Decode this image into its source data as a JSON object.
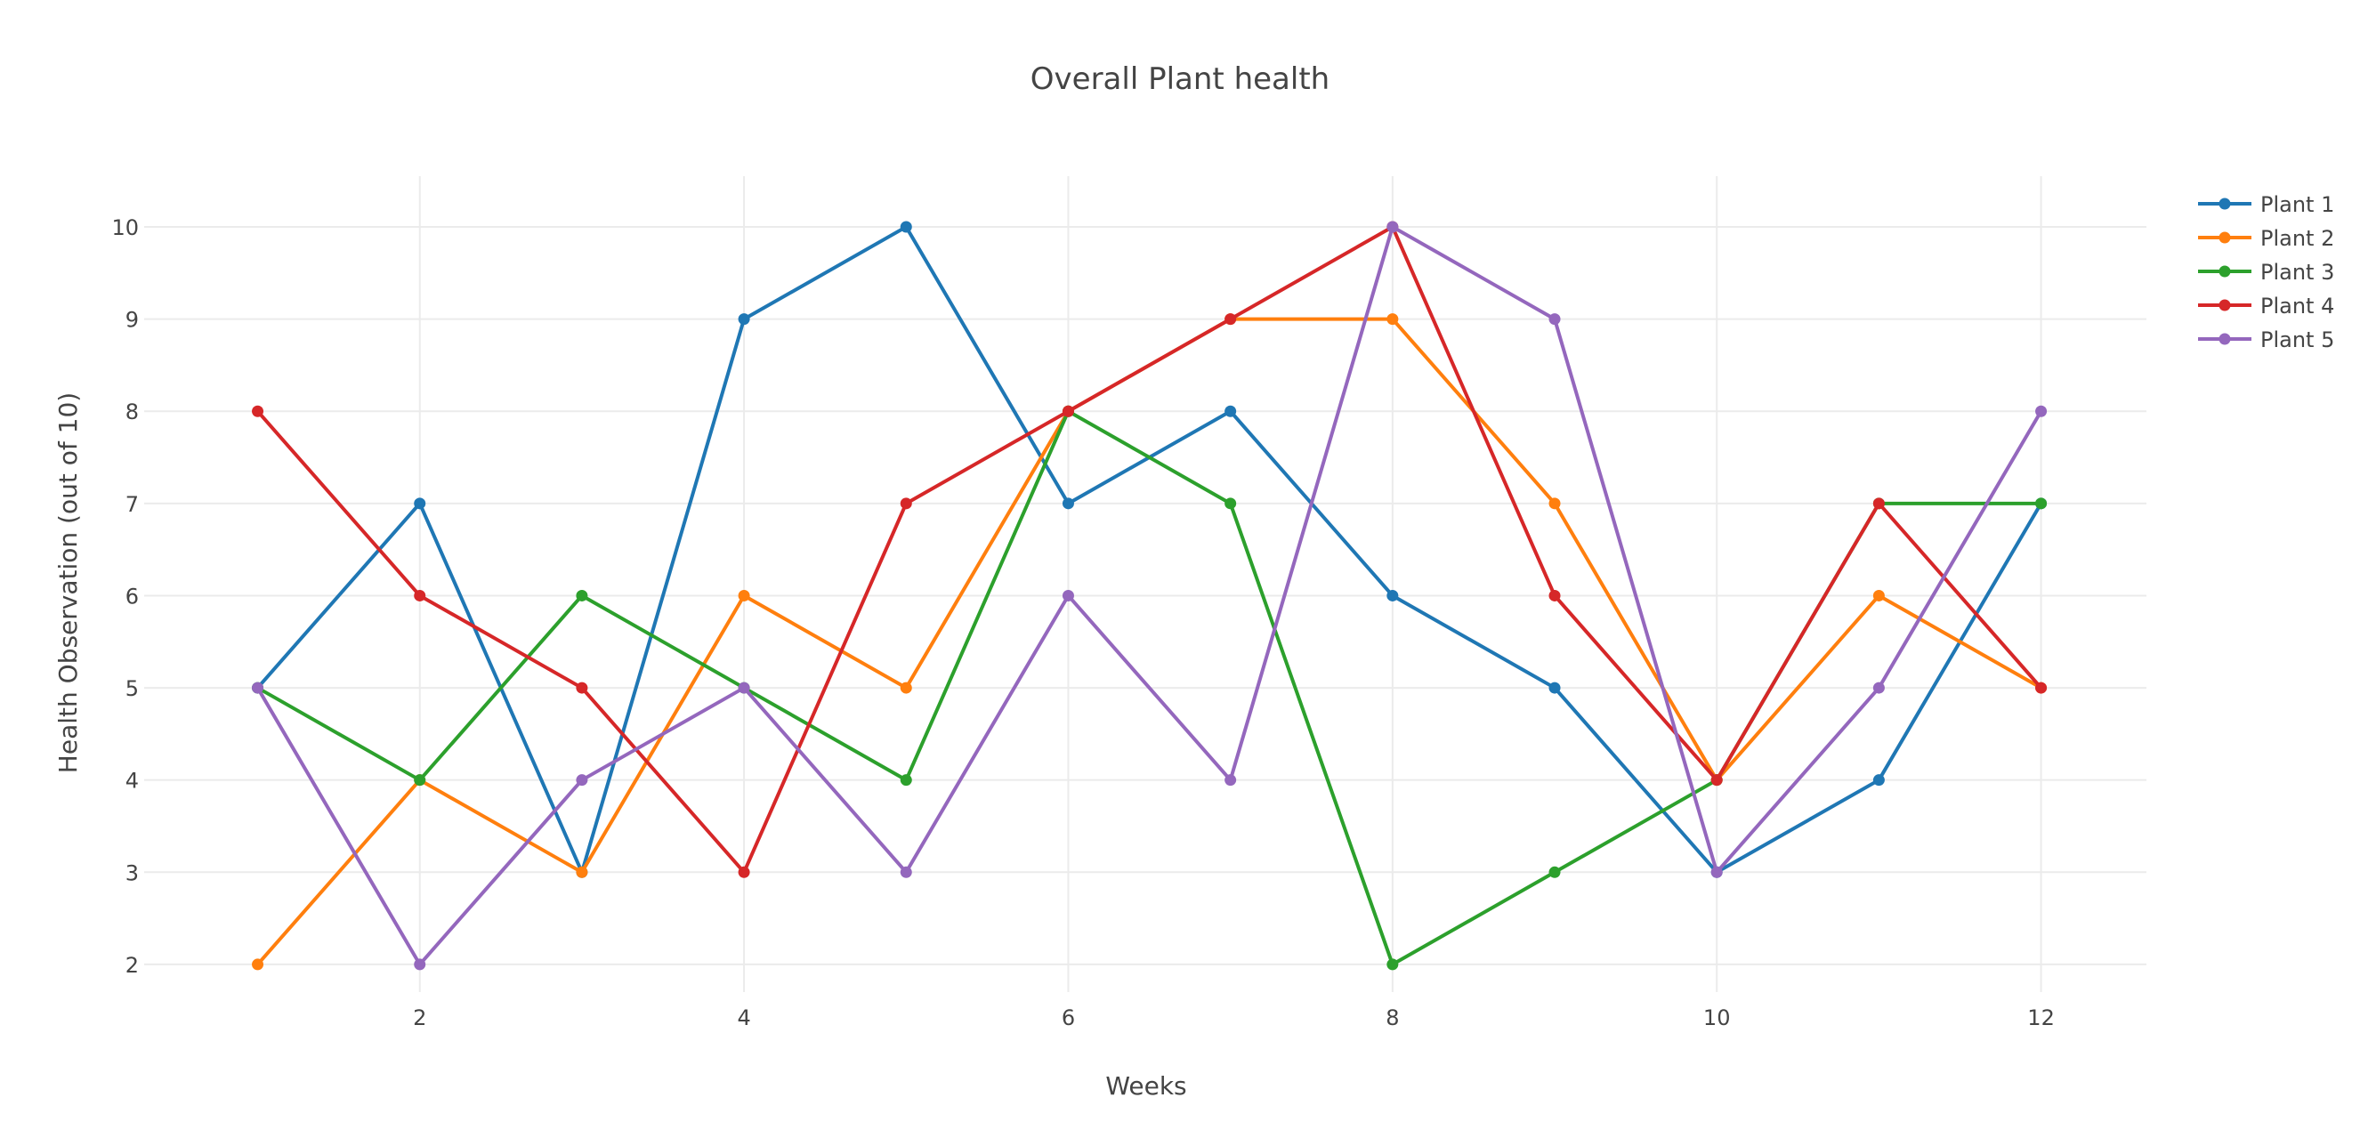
{
  "chart_data": {
    "type": "line",
    "title": "Overall Plant health",
    "xlabel": "Weeks",
    "ylabel": "Health Observation (out of 10)",
    "x": [
      1,
      2,
      3,
      4,
      5,
      6,
      7,
      8,
      9,
      10,
      11,
      12
    ],
    "xlim": [
      0.3,
      12.65
    ],
    "ylim": [
      1.7,
      10.55
    ],
    "xticks": [
      2,
      4,
      6,
      8,
      10,
      12
    ],
    "yticks": [
      2,
      3,
      4,
      5,
      6,
      7,
      8,
      9,
      10
    ],
    "grid": true,
    "legend_position": "top-right",
    "series": [
      {
        "name": "Plant 1",
        "color": "#1f77b4",
        "values": [
          5,
          7,
          3,
          9,
          10,
          7,
          8,
          6,
          5,
          3,
          4,
          7
        ]
      },
      {
        "name": "Plant 2",
        "color": "#ff7f0e",
        "values": [
          2,
          4,
          3,
          6,
          5,
          8,
          9,
          9,
          7,
          4,
          6,
          5
        ]
      },
      {
        "name": "Plant 3",
        "color": "#2ca02c",
        "values": [
          5,
          4,
          6,
          5,
          4,
          8,
          7,
          2,
          3,
          4,
          7,
          7
        ]
      },
      {
        "name": "Plant 4",
        "color": "#d62728",
        "values": [
          8,
          6,
          5,
          3,
          7,
          8,
          9,
          10,
          6,
          4,
          7,
          5
        ]
      },
      {
        "name": "Plant 5",
        "color": "#9467bd",
        "values": [
          5,
          2,
          4,
          5,
          3,
          6,
          4,
          10,
          9,
          3,
          5,
          8
        ]
      }
    ]
  }
}
